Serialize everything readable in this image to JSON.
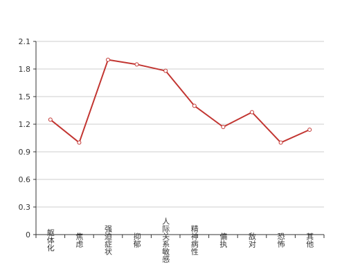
{
  "chart_data": {
    "type": "line",
    "categories": [
      "躯体化",
      "焦虑",
      "强迫症状",
      "抑郁",
      "人际关系敏感",
      "精神病性",
      "偏执",
      "敌对",
      "恐怖",
      "其他"
    ],
    "series": [
      {
        "values": [
          1.25,
          1.0,
          1.9,
          1.85,
          1.78,
          1.4,
          1.17,
          1.33,
          1.0,
          1.14
        ]
      }
    ],
    "ylim": [
      0,
      2.1
    ],
    "yticks": [
      "0",
      "0.3",
      "0.6",
      "0.9",
      "1.2",
      "1.5",
      "1.8",
      "2.1"
    ],
    "grid": true,
    "colors": {
      "line": "#c23531",
      "grid": "#cccccc",
      "axis": "#333333"
    }
  }
}
